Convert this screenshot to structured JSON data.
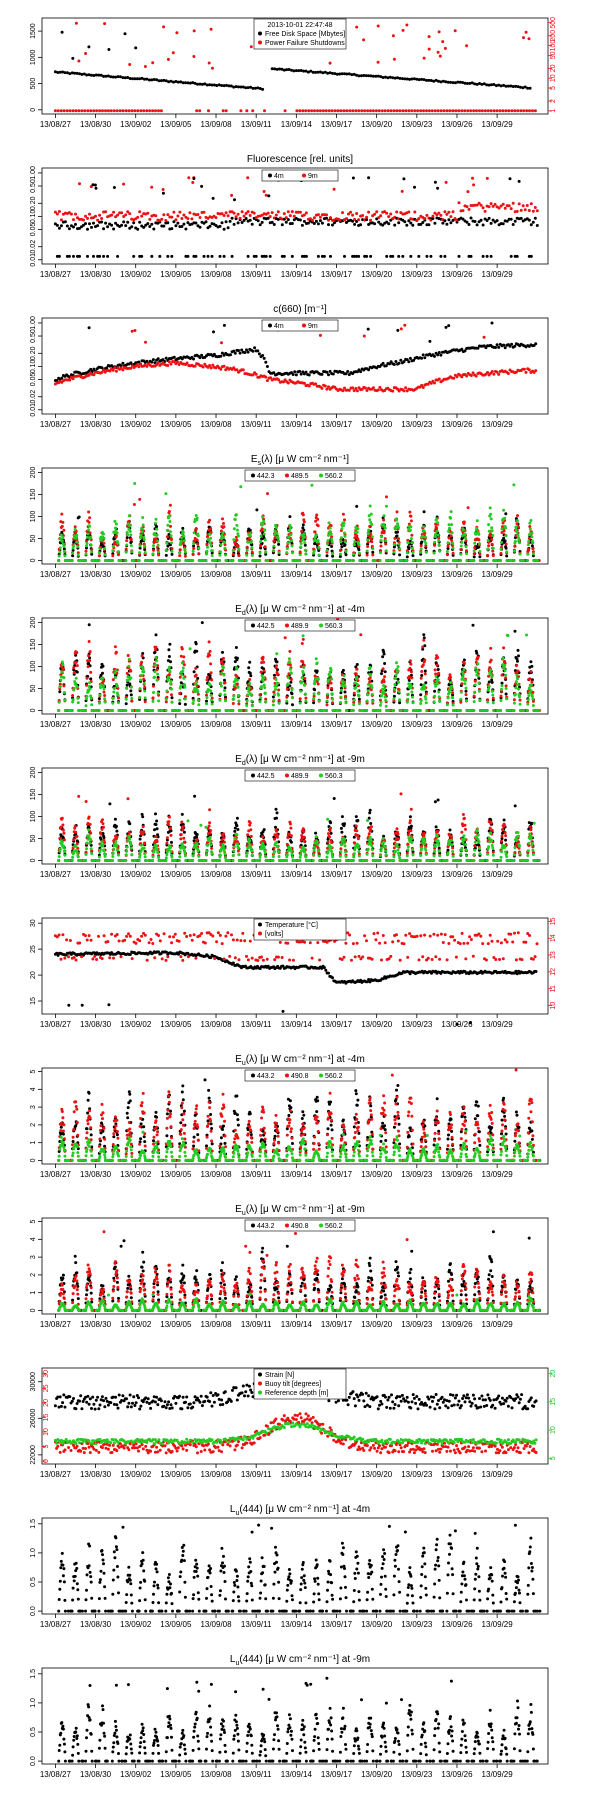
{
  "figure": {
    "x_ticks": [
      "13/08/27",
      "13/08/30",
      "13/09/02",
      "13/09/05",
      "13/09/08",
      "13/09/11",
      "13/09/14",
      "13/09/17",
      "13/09/20",
      "13/09/23",
      "13/09/26",
      "13/09/29"
    ],
    "x_tick_days": [
      0,
      3,
      6,
      9,
      12,
      15,
      18,
      21,
      24,
      27,
      30,
      33
    ],
    "x_range_days": [
      -1,
      36.8
    ]
  },
  "colors": {
    "black": "#000000",
    "red": "#ee1111",
    "green": "#22cc22"
  },
  "chart_data": [
    {
      "id": "disk",
      "type": "scatter",
      "title": "",
      "subtitle": "",
      "legend": {
        "title": "2013-10-01 22:47:48",
        "position": "top-center",
        "entries": [
          "Free Disk Space [Mbytes]",
          "Power Failure Shutdowns"
        ]
      },
      "y_left": {
        "ticks": [
          "0",
          "500",
          "1000",
          "1500"
        ],
        "tick_values": [
          0,
          500,
          1000,
          1500
        ],
        "range": [
          -80,
          1750
        ]
      },
      "y_right": {
        "ticks": [
          "1",
          "2",
          "5",
          "10",
          "20",
          "50",
          "100",
          "200",
          "500"
        ],
        "tick_values": [
          1,
          2,
          5,
          10,
          20,
          50,
          100,
          200,
          500
        ],
        "log": true,
        "range": [
          0.8,
          700
        ]
      },
      "series": [
        {
          "name": "Free Disk Space [Mbytes]",
          "color": "#000000",
          "axis": "left",
          "base": [
            [
              0,
              720
            ],
            [
              15.5,
              400
            ]
          ],
          "base2": [
            [
              16.2,
              780
            ],
            [
              35.5,
              420
            ]
          ],
          "noise": 25,
          "outliers": [
            [
              0.5,
              1480
            ],
            [
              1.3,
              980
            ],
            [
              2.5,
              1200
            ],
            [
              4,
              1150
            ],
            [
              5.2,
              1450
            ],
            [
              6,
              1180
            ]
          ]
        },
        {
          "name": "Power Failure Shutdowns",
          "color": "#ee1111",
          "axis": "right",
          "bands": [
            1,
            1
          ],
          "scatter_range": [
            20,
            500
          ],
          "gap": [
            8,
            18
          ]
        }
      ]
    },
    {
      "id": "fluor",
      "type": "scatter",
      "title": "Fluorescence  [rel. units]",
      "legend": {
        "entries": [
          "4m",
          "9m"
        ],
        "position": "top-center"
      },
      "y_left": {
        "ticks": [
          "0.01",
          "0.02",
          "0.05",
          "0.10",
          "0.20",
          "0.50",
          "1.00"
        ],
        "tick_values": [
          0.01,
          0.02,
          0.05,
          0.1,
          0.2,
          0.5,
          1
        ],
        "log": true,
        "range": [
          0.008,
          1.3
        ]
      },
      "series": [
        {
          "name": "4m",
          "color": "#000000",
          "level": 0.07,
          "low": 0.012
        },
        {
          "name": "9m",
          "color": "#ee1111",
          "level": 0.1,
          "high": 0.5
        }
      ]
    },
    {
      "id": "c660",
      "type": "scatter",
      "title": "c(660)  [m⁻¹]",
      "legend": {
        "entries": [
          "4m",
          "9m"
        ],
        "position": "top-center"
      },
      "y_left": {
        "ticks": [
          "0.01",
          "0.02",
          "0.05",
          "0.10",
          "0.20",
          "0.50",
          "1.00"
        ],
        "tick_values": [
          0.01,
          0.02,
          0.05,
          0.1,
          0.2,
          0.5,
          1
        ],
        "log": true,
        "range": [
          0.008,
          1.3
        ]
      },
      "series": [
        {
          "name": "4m",
          "color": "#000000",
          "path": [
            [
              0,
              0.05
            ],
            [
              6,
              0.12
            ],
            [
              12,
              0.18
            ],
            [
              15,
              0.25
            ],
            [
              16,
              0.07
            ],
            [
              22,
              0.07
            ],
            [
              26,
              0.13
            ],
            [
              32,
              0.28
            ],
            [
              36,
              0.32
            ]
          ]
        },
        {
          "name": "9m",
          "color": "#ee1111",
          "path": [
            [
              0,
              0.04
            ],
            [
              6,
              0.1
            ],
            [
              9,
              0.12
            ],
            [
              13,
              0.09
            ],
            [
              16,
              0.05
            ],
            [
              21,
              0.03
            ],
            [
              27,
              0.03
            ],
            [
              30,
              0.06
            ],
            [
              35,
              0.08
            ]
          ]
        }
      ]
    },
    {
      "id": "es",
      "type": "scatter",
      "title": "E_s(λ)  [μ W cm⁻² nm⁻¹]",
      "legend": {
        "entries": [
          "442.3",
          "489.5",
          "560.2"
        ],
        "position": "top-center"
      },
      "y_left": {
        "ticks": [
          "0",
          "50",
          "100",
          "150",
          "200"
        ],
        "tick_values": [
          0,
          50,
          100,
          150,
          200
        ],
        "range": [
          -8,
          210
        ]
      },
      "series": [
        {
          "name": "442.3",
          "color": "#000000",
          "peak": 85
        },
        {
          "name": "489.5",
          "color": "#ee1111",
          "peak": 100
        },
        {
          "name": "560.2",
          "color": "#22cc22",
          "peak": 110
        }
      ]
    },
    {
      "id": "ed4",
      "type": "scatter",
      "title": "E_d(λ)  [μ W cm⁻² nm⁻¹] at -4m",
      "legend": {
        "entries": [
          "442.5",
          "489.9",
          "560.3"
        ],
        "position": "top-center"
      },
      "y_left": {
        "ticks": [
          "0",
          "50",
          "100",
          "150",
          "200"
        ],
        "tick_values": [
          0,
          50,
          100,
          150,
          200
        ],
        "range": [
          -8,
          210
        ]
      },
      "series": [
        {
          "name": "442.5",
          "color": "#000000",
          "peak": 150
        },
        {
          "name": "489.9",
          "color": "#ee1111",
          "peak": 140
        },
        {
          "name": "560.3",
          "color": "#22cc22",
          "peak": 110
        }
      ]
    },
    {
      "id": "ed9",
      "type": "scatter",
      "title": "E_d(λ)  [μ W cm⁻² nm⁻¹] at -9m",
      "legend": {
        "entries": [
          "442.5",
          "489.9",
          "560.3"
        ],
        "position": "top-center"
      },
      "y_left": {
        "ticks": [
          "0",
          "50",
          "100",
          "150",
          "200"
        ],
        "tick_values": [
          0,
          50,
          100,
          150,
          200
        ],
        "range": [
          -8,
          210
        ]
      },
      "series": [
        {
          "name": "442.5",
          "color": "#000000",
          "peak": 100
        },
        {
          "name": "489.9",
          "color": "#ee1111",
          "peak": 95
        },
        {
          "name": "560.3",
          "color": "#22cc22",
          "peak": 60
        }
      ]
    },
    {
      "id": "temp",
      "type": "scatter",
      "title": "",
      "legend": {
        "entries": [
          "Temperature [°C]",
          "[volts]"
        ],
        "position": "top-center"
      },
      "y_left": {
        "ticks": [
          "15",
          "20",
          "25",
          "30"
        ],
        "tick_values": [
          15,
          20,
          25,
          30
        ],
        "range": [
          12.5,
          31
        ]
      },
      "y_right": {
        "ticks": [
          "10",
          "11",
          "12",
          "13",
          "14",
          "15"
        ],
        "tick_values": [
          10,
          11,
          12,
          13,
          14,
          15
        ],
        "range": [
          9.5,
          15.2
        ]
      },
      "series": [
        {
          "name": "Temperature [°C]",
          "color": "#000000",
          "axis": "left",
          "path": [
            [
              0,
              24
            ],
            [
              9,
              24.3
            ],
            [
              12,
              23.5
            ],
            [
              14,
              21.5
            ],
            [
              20,
              21.5
            ],
            [
              21,
              18.5
            ],
            [
              24,
              19
            ],
            [
              26,
              20.5
            ],
            [
              36,
              20.5
            ]
          ]
        },
        {
          "name": "[volts]",
          "color": "#ee1111",
          "axis": "right",
          "bands": [
            12.8,
            13.8,
            14.2
          ]
        }
      ]
    },
    {
      "id": "eu4",
      "type": "scatter",
      "title": "E_u(λ)  [μ W cm⁻² nm⁻¹] at -4m",
      "legend": {
        "entries": [
          "443.2",
          "490.8",
          "560.2"
        ],
        "position": "top-center"
      },
      "y_left": {
        "ticks": [
          "0",
          "1",
          "2",
          "3",
          "4",
          "5"
        ],
        "tick_values": [
          0,
          1,
          2,
          3,
          4,
          5
        ],
        "range": [
          -0.2,
          5.2
        ]
      },
      "series": [
        {
          "name": "443.2",
          "color": "#000000",
          "peak": 3.8
        },
        {
          "name": "490.8",
          "color": "#ee1111",
          "peak": 3.6
        },
        {
          "name": "560.2",
          "color": "#22cc22",
          "peak": 1.2
        }
      ]
    },
    {
      "id": "eu9",
      "type": "scatter",
      "title": "E_u(λ)  [μ W cm⁻² nm⁻¹] at -9m",
      "legend": {
        "entries": [
          "443.2",
          "490.8",
          "560.2"
        ],
        "position": "top-center"
      },
      "y_left": {
        "ticks": [
          "0",
          "1",
          "2",
          "3",
          "4",
          "5"
        ],
        "tick_values": [
          0,
          1,
          2,
          3,
          4,
          5
        ],
        "range": [
          -0.2,
          5.2
        ]
      },
      "series": [
        {
          "name": "443.2",
          "color": "#000000",
          "peak": 3.0
        },
        {
          "name": "490.8",
          "color": "#ee1111",
          "peak": 2.8
        },
        {
          "name": "560.2",
          "color": "#22cc22",
          "peak": 0.6
        }
      ]
    },
    {
      "id": "strain",
      "type": "scatter",
      "title": "",
      "legend": {
        "entries": [
          "Strain [N]",
          "Buoy tilt [degrees]",
          "Reference depth [m]"
        ],
        "position": "top-center"
      },
      "y_left": {
        "ticks": [
          "22000",
          "26000",
          "30000"
        ],
        "tick_values": [
          22000,
          26000,
          30000
        ],
        "range": [
          21000,
          31500
        ]
      },
      "y_inner": {
        "ticks": [
          "0",
          "5",
          "10",
          "15",
          "20",
          "25",
          "30"
        ],
        "tick_values": [
          0,
          5,
          10,
          15,
          20,
          25,
          30
        ],
        "range": [
          -1,
          32
        ]
      },
      "y_right": {
        "ticks": [
          "5",
          "10",
          "15",
          "20"
        ],
        "tick_values": [
          5,
          10,
          15,
          20
        ],
        "range": [
          4,
          21
        ]
      },
      "series": [
        {
          "name": "Strain [N]",
          "color": "#000000",
          "axis": "left",
          "level": 27800
        },
        {
          "name": "Buoy tilt [degrees]",
          "color": "#ee1111",
          "axis": "inner",
          "level": 4
        },
        {
          "name": "Reference depth [m]",
          "color": "#22cc22",
          "axis": "right",
          "level": 8
        }
      ]
    },
    {
      "id": "lu4",
      "type": "scatter",
      "title": "L_u(444)  [μ W cm⁻² nm⁻¹] at -4m",
      "y_left": {
        "ticks": [
          "0.0",
          "0.5",
          "1.0",
          "1.5"
        ],
        "tick_values": [
          0,
          0.5,
          1,
          1.5
        ],
        "range": [
          -0.05,
          1.6
        ]
      },
      "series": [
        {
          "name": "",
          "color": "#000000",
          "peak": 1.2
        }
      ]
    },
    {
      "id": "lu9",
      "type": "scatter",
      "title": "L_u(444)  [μ W cm⁻² nm⁻¹] at -9m",
      "y_left": {
        "ticks": [
          "0.0",
          "0.5",
          "1.0",
          "1.5"
        ],
        "tick_values": [
          0,
          0.5,
          1,
          1.5
        ],
        "range": [
          -0.05,
          1.6
        ]
      },
      "series": [
        {
          "name": "",
          "color": "#000000",
          "peak": 0.9
        }
      ]
    }
  ]
}
